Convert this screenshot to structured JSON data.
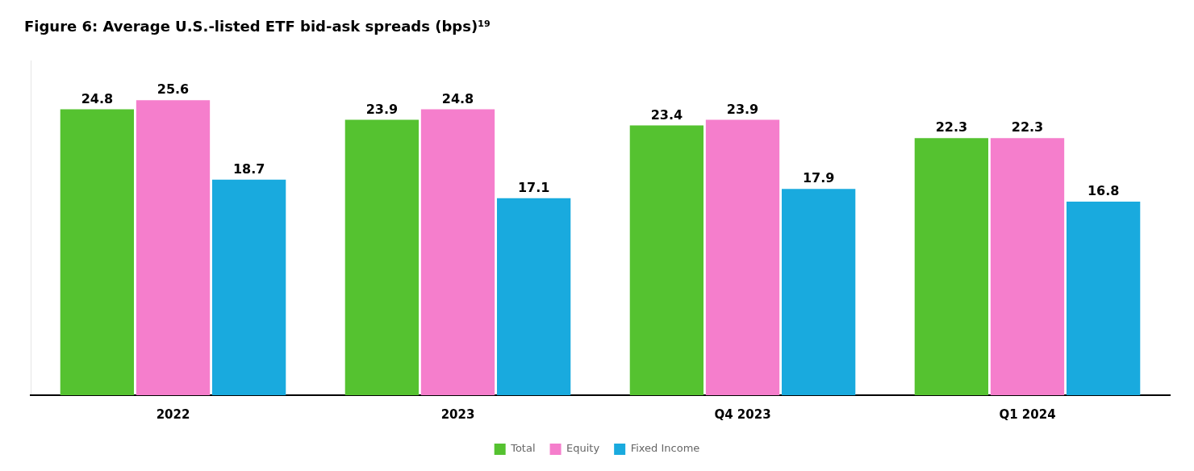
{
  "chart_data": {
    "type": "bar",
    "title": "Figure 6: Average U.S.-listed ETF bid-ask spreads (bps)¹⁹",
    "categories": [
      "2022",
      "2023",
      "Q4 2023",
      "Q1 2024"
    ],
    "series": [
      {
        "name": "Total",
        "color": "#55C230",
        "values": [
          24.8,
          23.9,
          23.4,
          22.3
        ]
      },
      {
        "name": "Equity",
        "color": "#F57ECC",
        "values": [
          25.6,
          24.8,
          23.9,
          22.3
        ]
      },
      {
        "name": "Fixed Income",
        "color": "#19AADE",
        "values": [
          18.7,
          17.1,
          17.9,
          16.8
        ]
      }
    ],
    "ylim": [
      0,
      29
    ],
    "grid": false,
    "legend": "bottom",
    "data_labels": true,
    "tick_labels": "x"
  }
}
